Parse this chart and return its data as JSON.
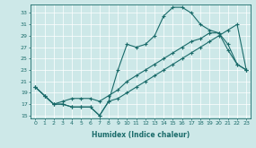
{
  "xlabel": "Humidex (Indice chaleur)",
  "bg_color": "#cde8e8",
  "line_color": "#1a6b6a",
  "xlim": [
    -0.5,
    23.5
  ],
  "ylim": [
    14.5,
    34.5
  ],
  "yticks": [
    15,
    17,
    19,
    21,
    23,
    25,
    27,
    29,
    31,
    33
  ],
  "xticks": [
    0,
    1,
    2,
    3,
    4,
    5,
    6,
    7,
    8,
    9,
    10,
    11,
    12,
    13,
    14,
    15,
    16,
    17,
    18,
    19,
    20,
    21,
    22,
    23
  ],
  "line1_x": [
    0,
    1,
    2,
    3,
    4,
    5,
    6,
    7,
    8,
    9,
    10,
    11,
    12,
    13,
    14,
    15,
    16,
    17,
    18,
    19,
    20,
    21,
    22,
    23
  ],
  "line1_y": [
    20.0,
    18.5,
    17.0,
    17.0,
    16.5,
    16.5,
    16.5,
    15.0,
    17.5,
    23.0,
    27.5,
    27.0,
    27.5,
    29.0,
    32.5,
    34.0,
    34.0,
    33.0,
    31.0,
    30.0,
    29.5,
    26.5,
    24.0,
    23.0
  ],
  "line2_x": [
    0,
    1,
    2,
    3,
    4,
    5,
    6,
    7,
    8,
    9,
    10,
    11,
    12,
    13,
    14,
    15,
    16,
    17,
    18,
    19,
    20,
    21,
    22,
    23
  ],
  "line2_y": [
    20.0,
    18.5,
    17.0,
    17.5,
    18.0,
    18.0,
    18.0,
    17.5,
    18.5,
    19.5,
    21.0,
    22.0,
    23.0,
    24.0,
    25.0,
    26.0,
    27.0,
    28.0,
    28.5,
    29.5,
    29.5,
    27.5,
    24.0,
    23.0
  ],
  "line3_x": [
    0,
    1,
    2,
    3,
    4,
    5,
    6,
    7,
    8,
    9,
    10,
    11,
    12,
    13,
    14,
    15,
    16,
    17,
    18,
    19,
    20,
    21,
    22,
    23
  ],
  "line3_y": [
    20.0,
    18.5,
    17.0,
    17.0,
    16.5,
    16.5,
    16.5,
    15.0,
    17.5,
    18.0,
    19.0,
    20.0,
    21.0,
    22.0,
    23.0,
    24.0,
    25.0,
    26.0,
    27.0,
    28.0,
    29.0,
    30.0,
    31.0,
    23.0
  ]
}
